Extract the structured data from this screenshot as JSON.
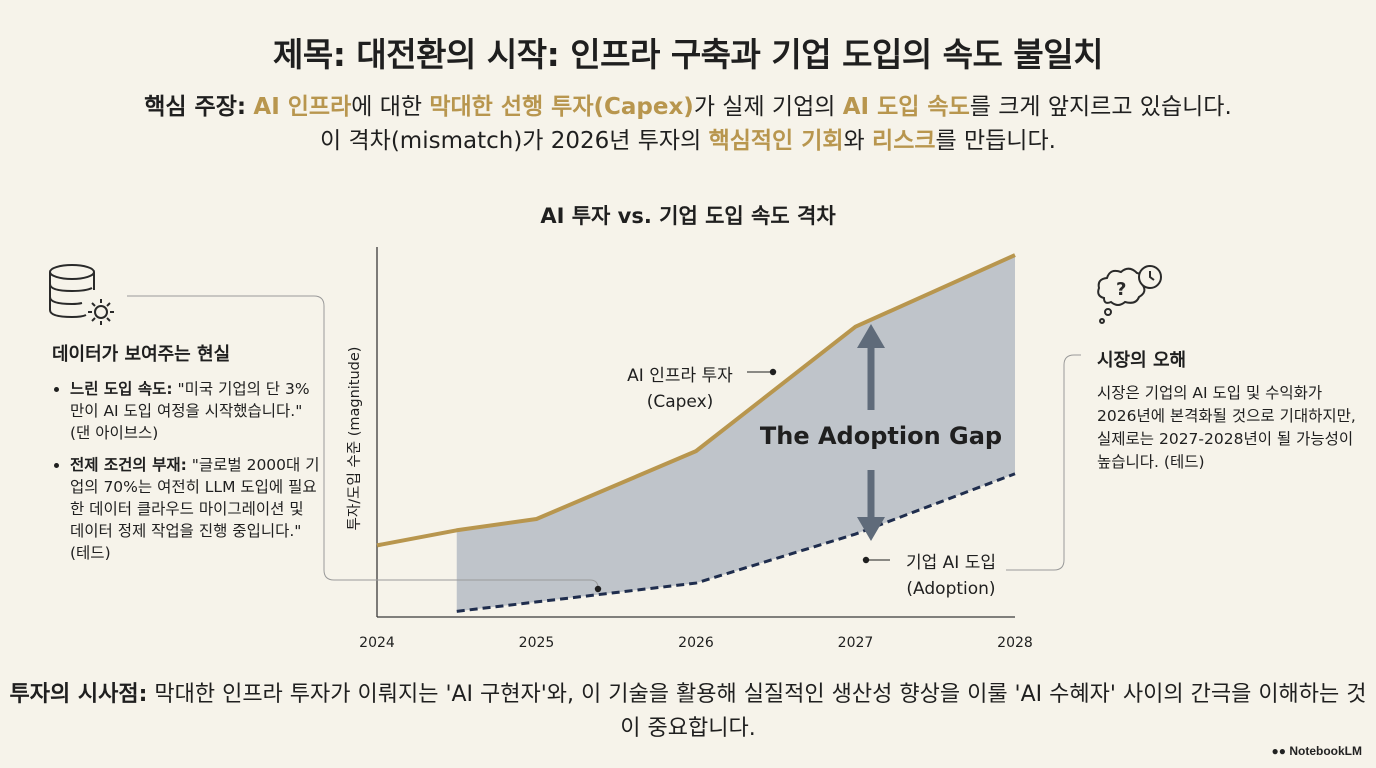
{
  "title": "제목: 대전환의 시작: 인프라 구축과 기업 도입의 속도 불일치",
  "claim": {
    "label": "핵심 주장:",
    "p1": "AI 인프라",
    "p2": "에 대한 ",
    "p3": "막대한 선행 투자(Capex)",
    "p4": "가 실제 기업의 ",
    "p5": "AI 도입 속도",
    "p6": "를 크게 앞지르고 있습니다.",
    "p7": "이 격차(mismatch)가 2026년 투자의 ",
    "p8": "핵심적인 기회",
    "p9": "와 ",
    "p10": "리스크",
    "p11": "를 만듭니다."
  },
  "left_panel": {
    "heading": "데이터가 보여주는 현실",
    "items": [
      {
        "label": "느린 도입 속도:",
        "text": " \"미국 기업의 단 3%만이 AI 도입 여정을 시작했습니다.\" (댄 아이브스)"
      },
      {
        "label": "전제 조건의 부재:",
        "text": " \"글로벌 2000대 기업의 70%는 여전히 LLM 도입에 필요한 데이터 클라우드 마이그레이션 및 데이터 정제 작업을 진행 중입니다.\" (테드)"
      }
    ]
  },
  "right_panel": {
    "heading": "시장의 오해",
    "text": "시장은 기업의 AI 도입 및 수익화가 2026년에 본격화될 것으로 기대하지만, 실제로는 2027-2028년이 될 가능성이 높습니다. (테드)"
  },
  "bottom": {
    "label": "투자의 시사점:",
    "text": " 막대한 인프라 투자가 이뤄지는 'AI 구현자'와, 이 기술을 활용해 실질적인 생산성 향상을 이룰 'AI 수혜자' 사이의 간극을 이해하는 것이 중요합니다."
  },
  "brand": "NotebookLM",
  "colors": {
    "gold": "#b8964e",
    "navy": "#1f2d4d",
    "gap_fill": "#b9bfc7",
    "arrow": "#5f6b7a",
    "background": "#f6f3ea"
  },
  "icons": [
    "database-gear-icon",
    "thought-bubble-clock-icon"
  ],
  "chart_data": {
    "type": "area",
    "title": "AI 투자 vs. 기업 도입 속도 격차",
    "ylabel": "투자/도입 수준 (magnitude)",
    "xlabel": "",
    "x": [
      2024,
      2025,
      2026,
      2027,
      2028
    ],
    "xlim": [
      2024,
      2028
    ],
    "ylim": [
      0,
      100
    ],
    "grid": false,
    "series": [
      {
        "name": "AI 인프라 투자 (Capex)",
        "label_line1": "AI 인프라 투자",
        "label_line2": "(Capex)",
        "style": "solid",
        "color": "#b8964e",
        "points": [
          [
            2024,
            19
          ],
          [
            2024.5,
            23
          ],
          [
            2025,
            26
          ],
          [
            2026,
            44
          ],
          [
            2027,
            77
          ],
          [
            2028,
            96
          ]
        ]
      },
      {
        "name": "기업 AI 도입 (Adoption)",
        "label_line1": "기업 AI 도입",
        "label_line2": "(Adoption)",
        "style": "dashed",
        "color": "#1f2d4d",
        "points": [
          [
            2024.5,
            1.5
          ],
          [
            2025,
            4
          ],
          [
            2026,
            9
          ],
          [
            2027,
            22
          ],
          [
            2028,
            38
          ]
        ]
      }
    ],
    "gap_label": "The Adoption Gap"
  }
}
